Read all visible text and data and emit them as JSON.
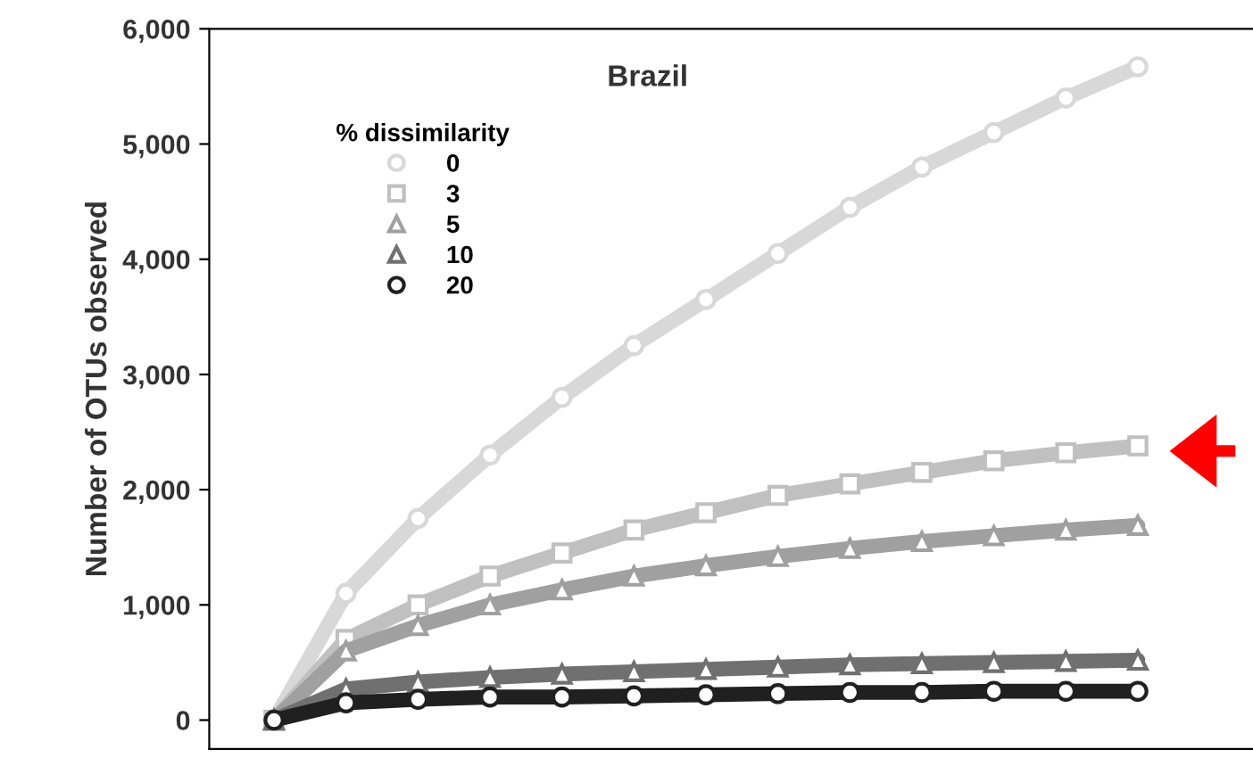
{
  "chart_data": {
    "type": "line",
    "title": "Brazil",
    "ylabel": "Number of OTUs observed",
    "legend_title": "% dissimilarity",
    "legend": "top left",
    "grid": false,
    "tick_labels": "y",
    "categories": [
      null,
      null,
      null,
      null,
      null,
      null,
      null,
      null,
      null,
      null,
      null,
      null,
      null
    ],
    "ylim": [
      -250,
      6000
    ],
    "yticks": [
      {
        "value": 0,
        "label": "0"
      },
      {
        "value": 1000,
        "label": "1,000"
      },
      {
        "value": 2000,
        "label": "2,000"
      },
      {
        "value": 3000,
        "label": "3,000"
      },
      {
        "value": 4000,
        "label": "4,000"
      },
      {
        "value": 5000,
        "label": "5,000"
      },
      {
        "value": 6000,
        "label": "6,000"
      }
    ],
    "series": [
      {
        "name": "0",
        "color": "#d8d8d8",
        "marker": "circle",
        "values": [
          0,
          1100,
          1750,
          2300,
          2800,
          3250,
          3650,
          4050,
          4450,
          4800,
          5100,
          5400,
          5670
        ]
      },
      {
        "name": "3",
        "color": "#c0c0c0",
        "marker": "square",
        "values": [
          0,
          700,
          1000,
          1250,
          1450,
          1650,
          1800,
          1950,
          2050,
          2150,
          2250,
          2320,
          2380
        ]
      },
      {
        "name": "5",
        "color": "#a0a0a0",
        "marker": "triangle",
        "values": [
          0,
          600,
          820,
          1000,
          1130,
          1250,
          1340,
          1420,
          1490,
          1550,
          1600,
          1650,
          1690
        ]
      },
      {
        "name": "10",
        "color": "#707070",
        "marker": "triangle",
        "values": [
          0,
          270,
          330,
          370,
          400,
          420,
          440,
          460,
          480,
          490,
          500,
          510,
          520
        ]
      },
      {
        "name": "20",
        "color": "#202020",
        "marker": "circle",
        "values": [
          0,
          150,
          180,
          200,
          200,
          210,
          220,
          230,
          240,
          240,
          250,
          250,
          250
        ]
      }
    ]
  }
}
